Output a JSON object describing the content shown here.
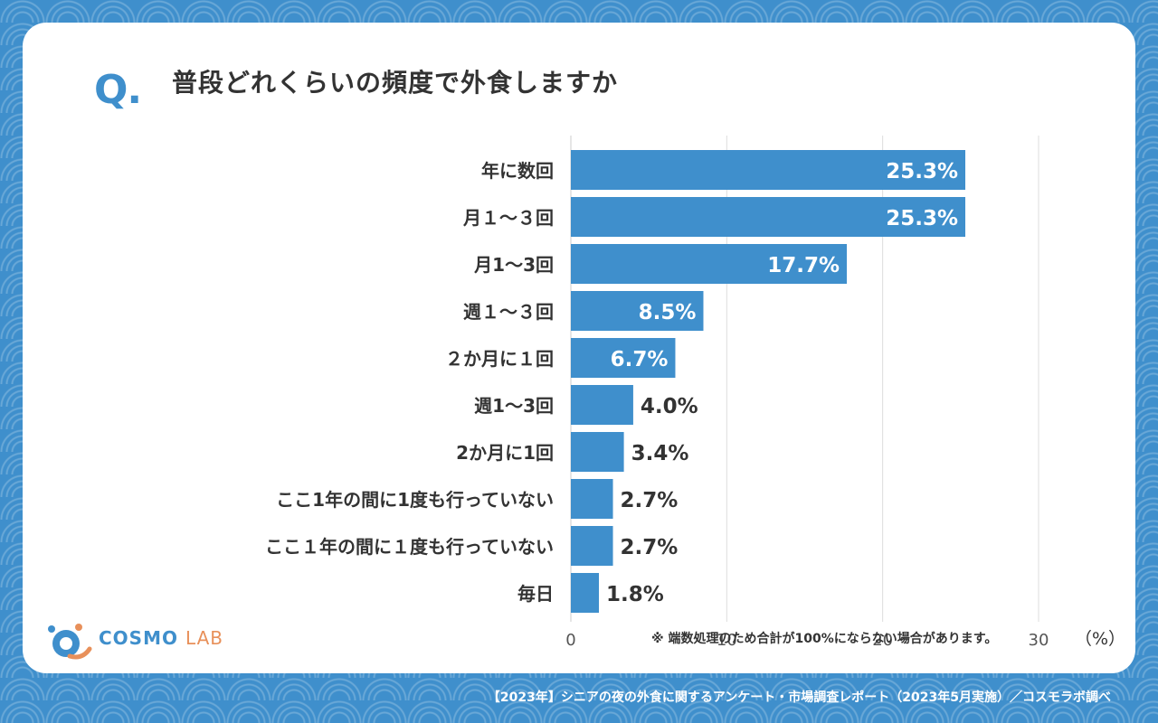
{
  "header": {
    "q_mark": "Q.",
    "title": "普段どれくらいの頻度で外食しますか"
  },
  "chart_data": {
    "type": "bar",
    "orientation": "horizontal",
    "categories": [
      "年に数回",
      "月１〜３回",
      "月1〜3回",
      "週１〜３回",
      "２か月に１回",
      "週1〜3回",
      "2か月に1回",
      "ここ1年の間に1度も行っていない",
      "ここ１年の間に１度も行っていない",
      "毎日"
    ],
    "values": [
      25.3,
      25.3,
      17.7,
      8.5,
      6.7,
      4.0,
      3.4,
      2.7,
      2.7,
      1.8
    ],
    "value_labels": [
      "25.3%",
      "25.3%",
      "17.7%",
      "8.5%",
      "6.7%",
      "4.0%",
      "3.4%",
      "2.7%",
      "2.7%",
      "1.8%"
    ],
    "x_ticks": [
      "0",
      "10",
      "20",
      "30"
    ],
    "xlim": [
      0,
      30
    ],
    "grid": true,
    "bar_color": "#3f8fcc"
  },
  "note": "※ 端数処理のため合計が100%にならない場合があります。",
  "unit_label": "（%）",
  "logo": {
    "text_main": "COSMO",
    "text_sub": "LAB"
  },
  "footer": "【2023年】シニアの夜の外食に関するアンケート・市場調査レポート（2023年5月実施）／コスモラボ調べ",
  "colors": {
    "background": "#3f8fcc",
    "accent": "#3f8fcc",
    "text": "#333333",
    "logo_accent": "#e8905a"
  }
}
